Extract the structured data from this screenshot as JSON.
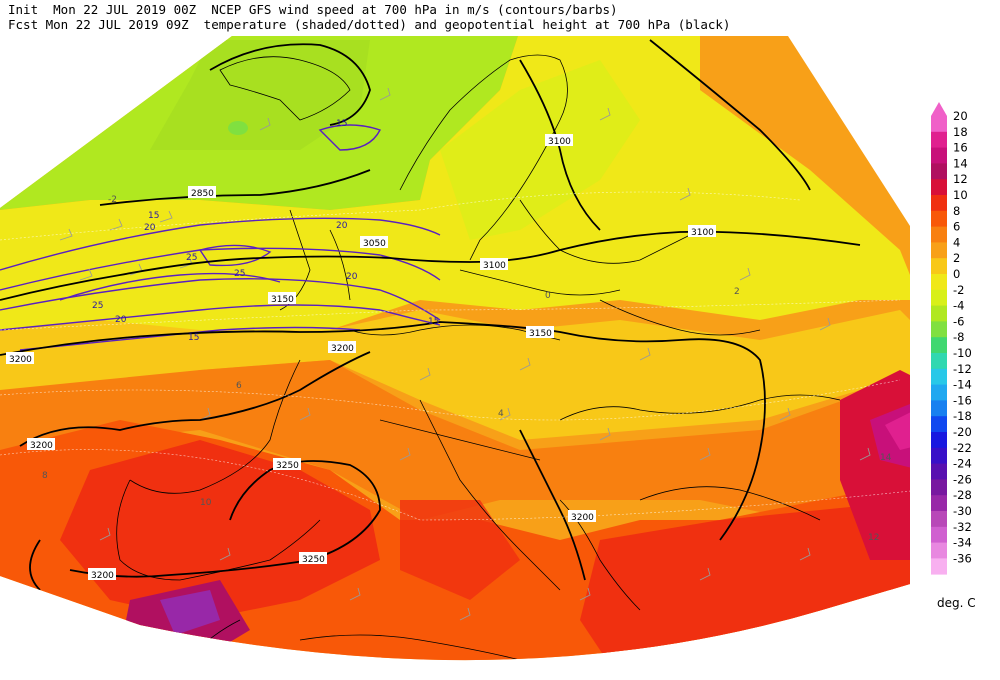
{
  "header": {
    "line1": "Init  Mon 22 JUL 2019 00Z  NCEP GFS wind speed at 700 hPa in m/s (contours/barbs)",
    "line2": "Fcst Mon 22 JUL 2019 09Z  temperature (shaded/dotted) and geopotential height at 700 hPa (black)"
  },
  "colorbar": {
    "units": "deg. C",
    "levels": [
      {
        "label": "20",
        "color": "#f060c8"
      },
      {
        "label": "18",
        "color": "#e0208f"
      },
      {
        "label": "16",
        "color": "#c8107a"
      },
      {
        "label": "14",
        "color": "#b01060"
      },
      {
        "label": "12",
        "color": "#d81038"
      },
      {
        "label": "10",
        "color": "#f03010"
      },
      {
        "label": "8",
        "color": "#f85808"
      },
      {
        "label": "6",
        "color": "#f88010"
      },
      {
        "label": "4",
        "color": "#f8a018"
      },
      {
        "label": "2",
        "color": "#f8c818"
      },
      {
        "label": "0",
        "color": "#f0e818"
      },
      {
        "label": "-2",
        "color": "#d8f018"
      },
      {
        "label": "-4",
        "color": "#b0e820"
      },
      {
        "label": "-6",
        "color": "#80e040"
      },
      {
        "label": "-8",
        "color": "#40d870"
      },
      {
        "label": "-10",
        "color": "#30d8b0"
      },
      {
        "label": "-12",
        "color": "#28c8e8"
      },
      {
        "label": "-14",
        "color": "#20a8f0"
      },
      {
        "label": "-16",
        "color": "#1880f0"
      },
      {
        "label": "-18",
        "color": "#1048f0"
      },
      {
        "label": "-20",
        "color": "#1818e0"
      },
      {
        "label": "-22",
        "color": "#3810c8"
      },
      {
        "label": "-24",
        "color": "#5810b0"
      },
      {
        "label": "-26",
        "color": "#7818a0"
      },
      {
        "label": "-28",
        "color": "#9828a8"
      },
      {
        "label": "-30",
        "color": "#b848b8"
      },
      {
        "label": "-32",
        "color": "#d060d0"
      },
      {
        "label": "-34",
        "color": "#e888e0"
      },
      {
        "label": "-36",
        "color": "#f8b0f0"
      }
    ]
  },
  "height_contour_labels": [
    "3100",
    "3100",
    "3150",
    "3200",
    "3200",
    "3200",
    "3250",
    "3250",
    "3200",
    "2850",
    "3050",
    "3100",
    "3150",
    "3200"
  ],
  "wind_contour_labels": [
    "15",
    "20",
    "25",
    "20",
    "20",
    "15",
    "15",
    "20",
    "25",
    "25",
    "15"
  ],
  "temperature_labels": [
    "-2",
    "0",
    "2",
    "4",
    "6",
    "8",
    "10",
    "12",
    "14"
  ]
}
